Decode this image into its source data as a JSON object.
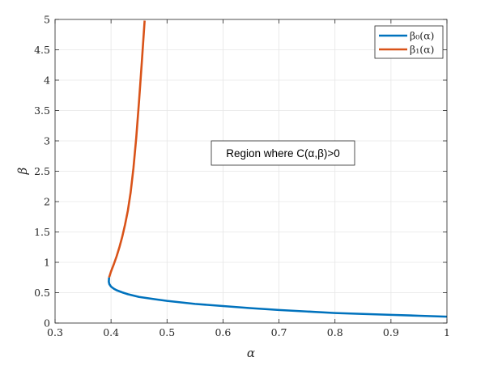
{
  "chart_data": {
    "type": "line",
    "xlabel": "α",
    "ylabel": "β",
    "xlim": [
      0.3,
      1.0
    ],
    "ylim": [
      0,
      5
    ],
    "x_ticks": [
      "0.3",
      "0.4",
      "0.5",
      "0.6",
      "0.7",
      "0.8",
      "0.9",
      "1"
    ],
    "y_ticks": [
      "0",
      "0.5",
      "1",
      "1.5",
      "2",
      "2.5",
      "3",
      "3.5",
      "4",
      "4.5",
      "5"
    ],
    "grid": true,
    "legend_position": "top-right",
    "series": [
      {
        "name": "β₀(α)",
        "color": "#0072BD",
        "x": [
          0.3965,
          0.396,
          0.397,
          0.4,
          0.405,
          0.41,
          0.42,
          0.43,
          0.45,
          0.48,
          0.5,
          0.55,
          0.6,
          0.65,
          0.7,
          0.75,
          0.8,
          0.85,
          0.9,
          0.95,
          1.0
        ],
        "y": [
          0.75,
          0.68,
          0.64,
          0.6,
          0.565,
          0.54,
          0.505,
          0.475,
          0.43,
          0.39,
          0.365,
          0.315,
          0.28,
          0.245,
          0.215,
          0.19,
          0.165,
          0.15,
          0.135,
          0.12,
          0.105
        ]
      },
      {
        "name": "β₁(α)",
        "color": "#D95319",
        "x": [
          0.3965,
          0.4,
          0.405,
          0.41,
          0.415,
          0.42,
          0.425,
          0.43,
          0.435,
          0.44,
          0.445,
          0.45,
          0.455,
          0.46
        ],
        "y": [
          0.75,
          0.85,
          0.97,
          1.1,
          1.25,
          1.42,
          1.62,
          1.85,
          2.15,
          2.55,
          3.05,
          3.65,
          4.3,
          4.98
        ]
      }
    ],
    "annotation": "Region where C(α,β)>0",
    "legend_labels": [
      "β₀(α)",
      "β₁(α)"
    ]
  }
}
